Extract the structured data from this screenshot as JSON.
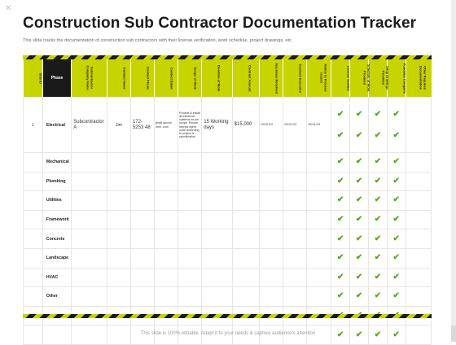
{
  "title": "Construction Sub Contractor Documentation Tracker",
  "subtitle": "This slide tracks the documentation of construction sub contractors with their license verification, work schedule, project drawings, etc.",
  "columns": [
    "SUB ID",
    "Phase",
    "Subcontractor Company Name",
    "Contact Name",
    "Contact Phone",
    "Contact Email",
    "Scope of Work",
    "Duration of Work",
    "Contract Amount",
    "Insurance Received",
    "Contract Executed",
    "Notice to Proceed Issued",
    "License Verified",
    "Schedule of Work Provided",
    "Shop Drawings Provided",
    "Punchlist Complete",
    "Other Required Documentation"
  ],
  "first_row": {
    "id": "1",
    "phase": "Electrical",
    "company": "Subcontractor A",
    "contact_name": "Jim",
    "phone": "172-5253 48",
    "email": "jim@ abcxm nmo .com",
    "scope": "Provide & install all electrical systems as per scope. Ensure license rights code according to project & specification",
    "duration": "15 Working days",
    "amount": "$15,000",
    "insurance": "10/15 /24",
    "contract": "10/15 /24",
    "notice": "10/16 /24"
  },
  "phases": [
    "Mechanical",
    "Plumbing",
    "Utilities",
    "Framework",
    "Concrete",
    "Landscape",
    "HVAC",
    "Other"
  ],
  "check_symbol": "✔",
  "accent_color": "#c8d400",
  "check_color": "#5aa51b",
  "footer": "This slide is 100% editable. Adapt it to your needs & capture audience's attention"
}
